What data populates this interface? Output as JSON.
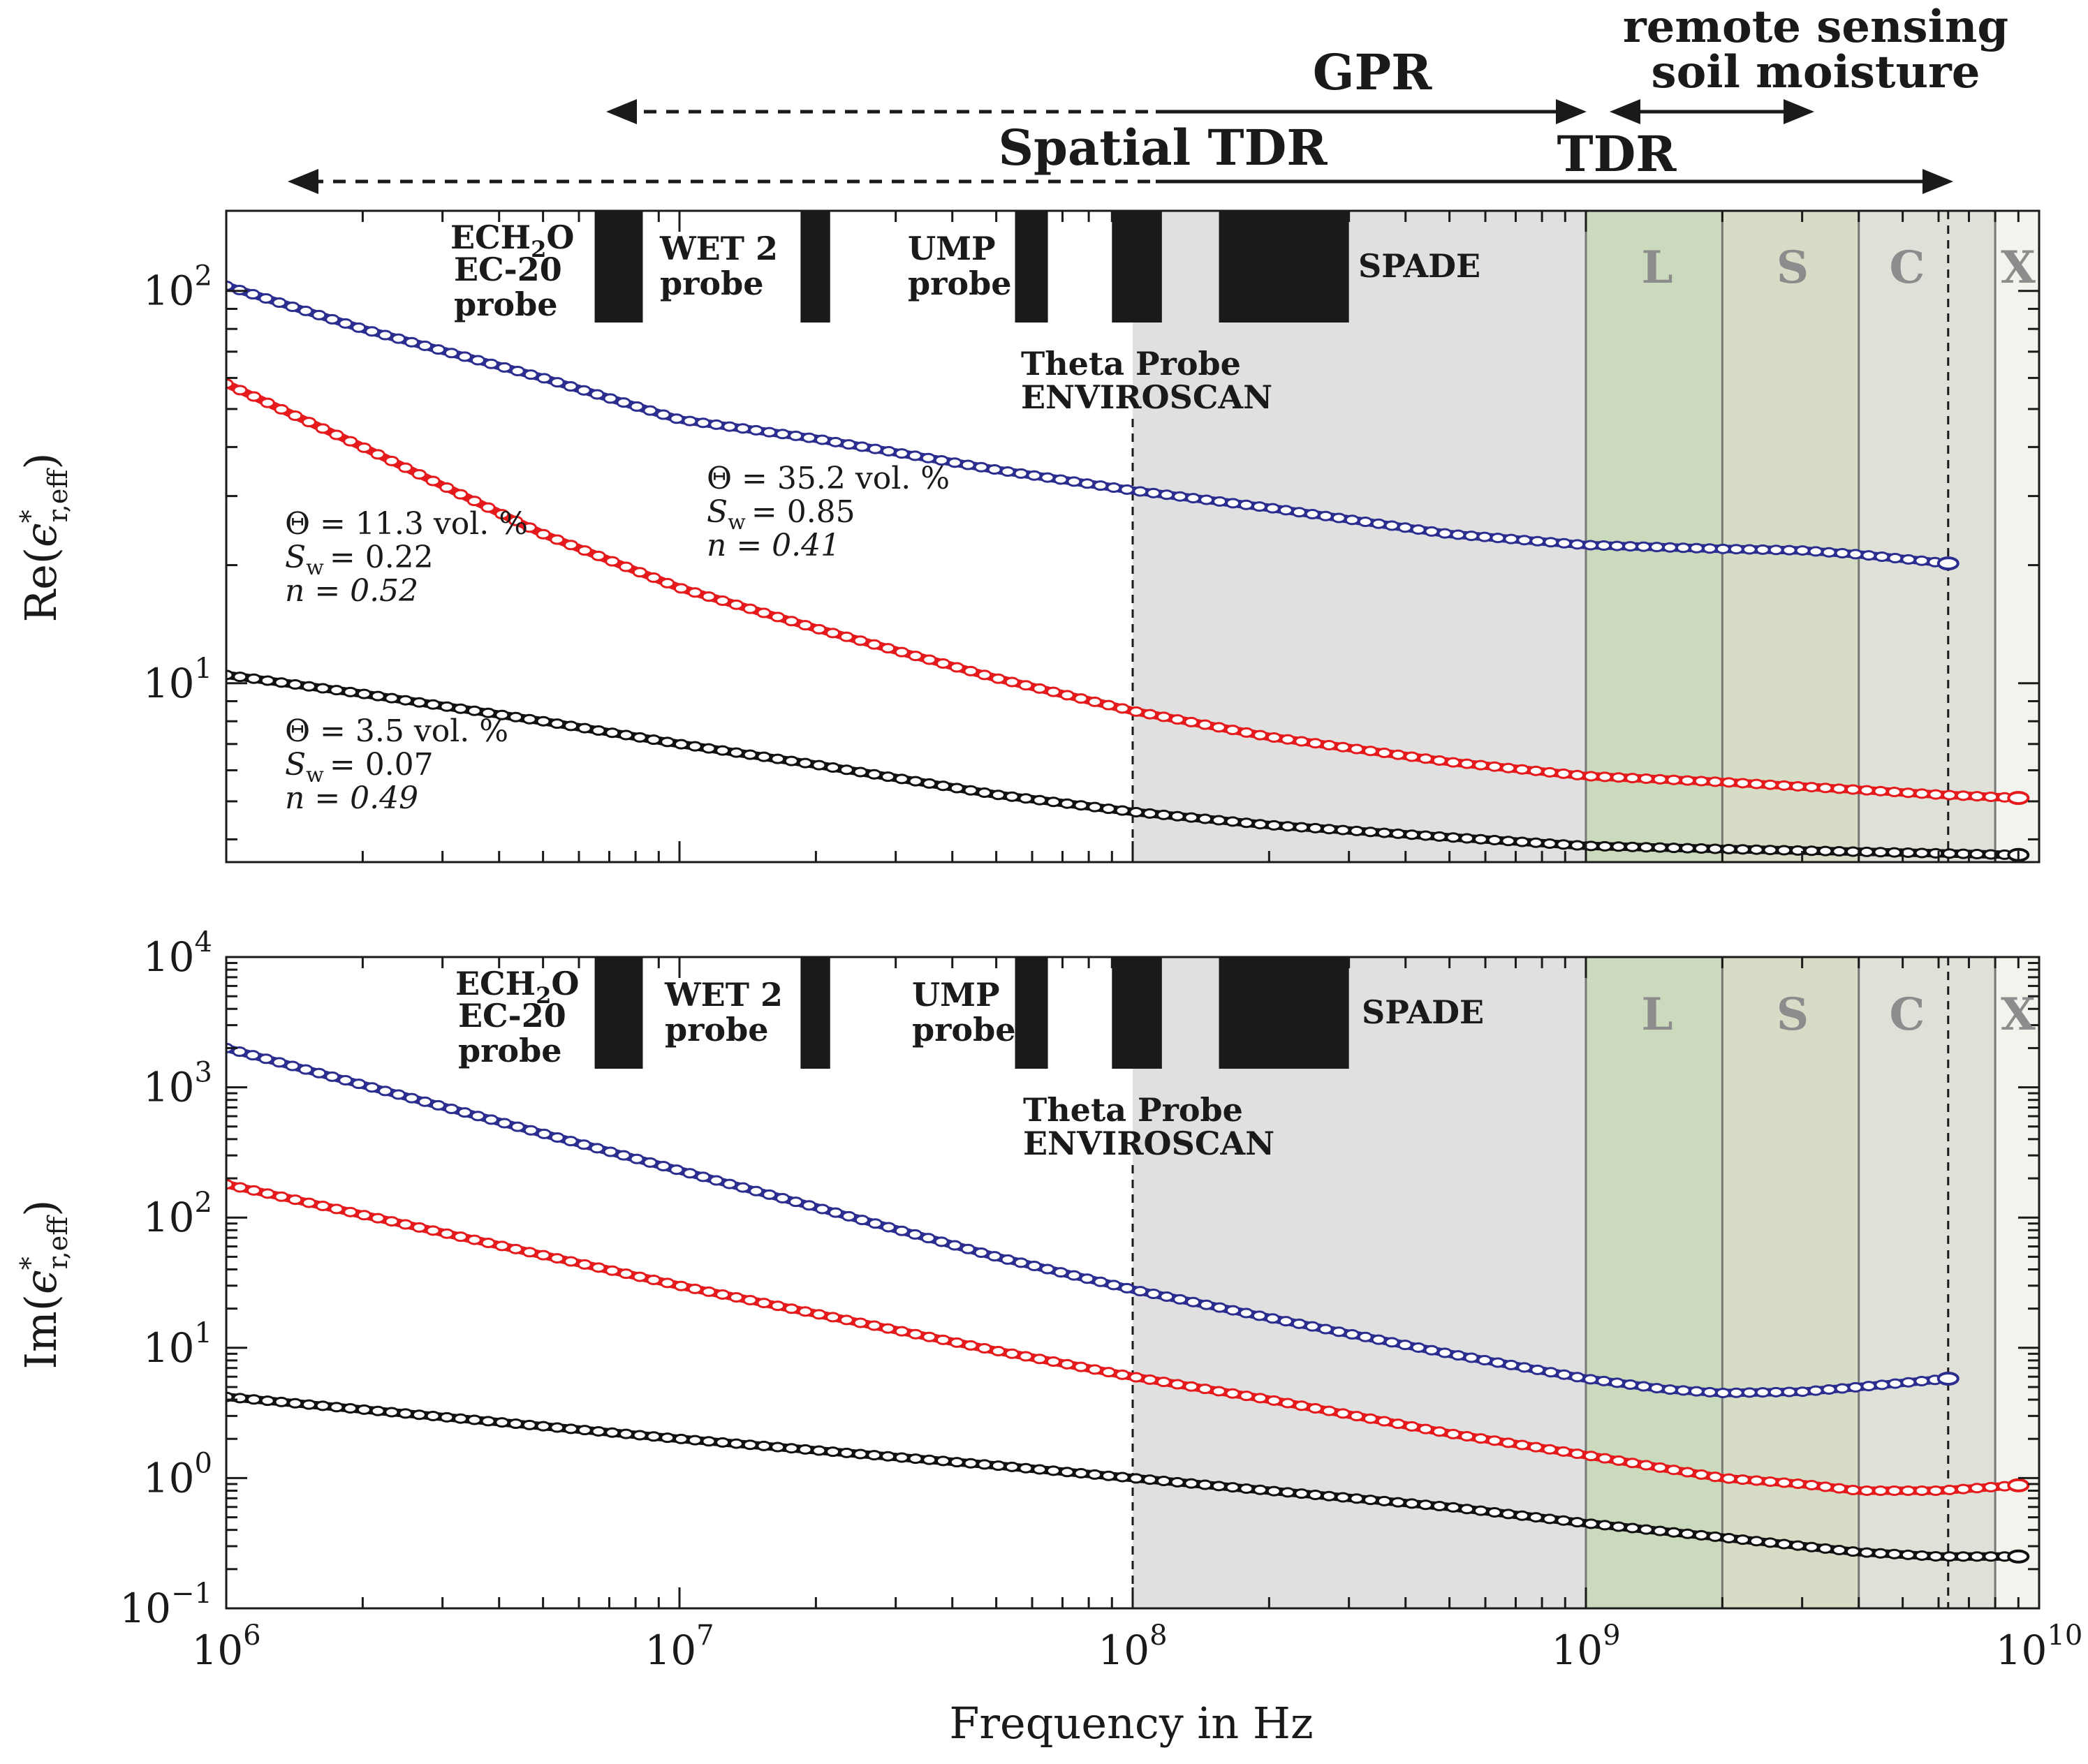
{
  "chart_data": [
    {
      "type": "scatter",
      "panel": "top",
      "ylabel_prefix": "Re",
      "ylabel_sub": "r,eff",
      "xscale": "log",
      "yscale": "log",
      "xlim": [
        1000000,
        10000000000
      ],
      "ylim": [
        3.5,
        160
      ],
      "ytick_labels": [
        {
          "value": 10,
          "base": "10",
          "exp": "1"
        },
        {
          "value": 100,
          "base": "10",
          "exp": "2"
        }
      ],
      "series": [
        {
          "name": "Θ = 35.2 vol. %",
          "color": "#2b2d8f",
          "x": [
            1000000,
            2000000,
            5000000,
            10000000,
            20000000,
            50000000,
            100000000,
            200000000,
            500000000,
            1000000000,
            2000000000,
            3000000000,
            4000000000,
            6300000000
          ],
          "y": [
            103,
            80,
            60,
            47,
            42,
            35,
            31,
            28,
            24,
            22.5,
            22,
            21.8,
            21.3,
            20.2
          ]
        },
        {
          "name": "Θ = 11.3 vol. %",
          "color": "#e41a1c",
          "x": [
            1000000,
            2000000,
            5000000,
            10000000,
            20000000,
            50000000,
            100000000,
            200000000,
            500000000,
            1000000000,
            2000000000,
            4000000000,
            6000000000,
            9000000000
          ],
          "y": [
            58,
            40,
            24,
            17.5,
            13.8,
            10.3,
            8.5,
            7.3,
            6.3,
            5.8,
            5.6,
            5.35,
            5.2,
            5.1
          ]
        },
        {
          "name": "Θ = 3.5 vol. %",
          "color": "#111111",
          "x": [
            1000000,
            2000000,
            5000000,
            10000000,
            20000000,
            50000000,
            100000000,
            200000000,
            500000000,
            1000000000,
            2000000000,
            4000000000,
            9000000000
          ],
          "y": [
            10.5,
            9.4,
            8.0,
            7.0,
            6.2,
            5.2,
            4.7,
            4.35,
            4.05,
            3.85,
            3.78,
            3.72,
            3.65
          ]
        }
      ]
    },
    {
      "type": "scatter",
      "panel": "bottom",
      "ylabel_prefix": "Im",
      "ylabel_sub": "r,eff",
      "xlabel": "Frequency in Hz",
      "xscale": "log",
      "yscale": "log",
      "xlim": [
        1000000,
        10000000000
      ],
      "ylim": [
        0.1,
        10000
      ],
      "ytick_labels": [
        {
          "value": 0.1,
          "base": "10",
          "exp": "−1"
        },
        {
          "value": 1,
          "base": "10",
          "exp": "0"
        },
        {
          "value": 10,
          "base": "10",
          "exp": "1"
        },
        {
          "value": 100,
          "base": "10",
          "exp": "2"
        },
        {
          "value": 1000,
          "base": "10",
          "exp": "3"
        },
        {
          "value": 10000,
          "base": "10",
          "exp": "4"
        }
      ],
      "xtick_labels": [
        {
          "value": 1000000,
          "base": "10",
          "exp": "6"
        },
        {
          "value": 10000000,
          "base": "10",
          "exp": "7"
        },
        {
          "value": 100000000,
          "base": "10",
          "exp": "8"
        },
        {
          "value": 1000000000,
          "base": "10",
          "exp": "9"
        },
        {
          "value": 10000000000,
          "base": "10",
          "exp": "10"
        }
      ],
      "series": [
        {
          "name": "Θ = 35.2 vol. %",
          "color": "#2b2d8f",
          "x": [
            1000000,
            10000000,
            20000000,
            50000000,
            100000000,
            200000000,
            500000000,
            1000000000,
            1500000000,
            2000000000,
            3000000000,
            4000000000,
            6300000000
          ],
          "y": [
            2000,
            230,
            120,
            50,
            28,
            17,
            9,
            5.8,
            4.8,
            4.5,
            4.6,
            5.0,
            5.8
          ]
        },
        {
          "name": "Θ = 11.3 vol. %",
          "color": "#e41a1c",
          "x": [
            1000000,
            10000000,
            50000000,
            100000000,
            200000000,
            500000000,
            1000000000,
            2000000000,
            3000000000,
            4000000000,
            6000000000,
            9000000000
          ],
          "y": [
            180,
            30,
            9.5,
            6,
            4,
            2.2,
            1.5,
            1.0,
            0.9,
            0.8,
            0.8,
            0.88
          ]
        },
        {
          "name": "Θ = 3.5 vol. %",
          "color": "#111111",
          "x": [
            1000000,
            10000000,
            50000000,
            100000000,
            200000000,
            500000000,
            1000000000,
            2000000000,
            4000000000,
            6000000000,
            9000000000
          ],
          "y": [
            4.2,
            2.0,
            1.25,
            1.0,
            0.8,
            0.6,
            0.45,
            0.35,
            0.27,
            0.25,
            0.25
          ]
        }
      ]
    }
  ],
  "ranges": {
    "gpr": "GPR",
    "spatial_tdr": "Spatial TDR",
    "tdr": "TDR",
    "remote_line1": "remote sensing",
    "remote_line2": "soil moisture"
  },
  "bands": [
    "L",
    "S",
    "C",
    "X"
  ],
  "probes": {
    "ech2o_line1_a": "ECH",
    "ech2o_line1_sub": "2",
    "ech2o_line1_b": "O",
    "ech2o_line2": "EC-20",
    "ech2o_line3": "probe",
    "wet2_line1": "WET 2",
    "wet2_line2": "probe",
    "ump_line1": "UMP",
    "ump_line2": "probe",
    "spade": "SPADE",
    "theta_line1": "Theta Probe",
    "theta_line2": "ENVIROSCAN"
  },
  "annotations": {
    "high": {
      "theta": "Θ = 35.2 vol. %",
      "sw": "= 0.85",
      "n": "n = 0.41"
    },
    "mid": {
      "theta": "Θ = 11.3 vol. %",
      "sw": "= 0.22",
      "n": "n = 0.52"
    },
    "low": {
      "theta": "Θ = 3.5 vol. %",
      "sw": "= 0.07",
      "n": "n = 0.49"
    }
  },
  "labels": {
    "sw_symbol": "S",
    "sw_sub": "w",
    "epsilon": "ϵ",
    "star": "*"
  },
  "colors": {
    "grey_region": "#e0e0e0",
    "band_L": "#cbd9bc",
    "band_S": "#d6dcc6",
    "band_C": "#dfe1d9",
    "band_X": "#f1f3ec",
    "probe_block": "#1a1a1a"
  }
}
